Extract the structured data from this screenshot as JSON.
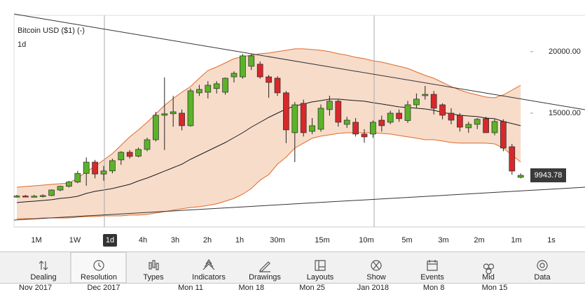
{
  "chart_data": {
    "type": "candlestick",
    "title": "Bitcoin USD ($1) (-)",
    "subtitle": "1d",
    "categories": [
      "Nov 2017",
      null,
      null,
      null,
      null,
      null,
      null,
      null,
      null,
      null,
      "Dec 2017",
      null,
      null,
      null,
      null,
      null,
      null,
      null,
      null,
      null,
      "Mon 11",
      null,
      null,
      null,
      null,
      null,
      null,
      "Mon 18",
      null,
      null,
      null,
      null,
      null,
      null,
      "Mon 25",
      null,
      null,
      null,
      null,
      null,
      null,
      "Jan 2018",
      null,
      null,
      null,
      null,
      null,
      null,
      "Mon 8",
      null,
      null,
      null,
      null,
      null,
      null,
      "Mon 15",
      null,
      null,
      null
    ],
    "open": [
      8200,
      8260,
      8230,
      8250,
      8300,
      8750,
      9050,
      9400,
      10100,
      11020,
      10050,
      10300,
      11200,
      11820,
      11500,
      12050,
      12840,
      14830,
      14950,
      15000,
      13980,
      16650,
      16700,
      17000,
      16700,
      17950,
      17950,
      18810,
      18980,
      17950,
      17840,
      16650,
      13410,
      15800,
      13520,
      13690,
      15290,
      15970,
      14090,
      14260,
      13300,
      13300,
      14430,
      14260,
      15000,
      14400,
      15680,
      16420,
      16530,
      15680,
      15000,
      14830,
      13810,
      14090,
      14550,
      13410,
      14320,
      12270,
      9780
    ],
    "high": [
      8350,
      8350,
      8360,
      8400,
      8800,
      9100,
      9500,
      10300,
      11400,
      11200,
      10700,
      11300,
      11900,
      12000,
      12200,
      13000,
      15100,
      17900,
      16400,
      15300,
      17000,
      17300,
      17600,
      17600,
      17900,
      18400,
      19800,
      19830,
      19200,
      18100,
      18000,
      16800,
      15900,
      16100,
      14600,
      15700,
      16420,
      16100,
      14700,
      14600,
      13700,
      14400,
      14800,
      15200,
      15300,
      16000,
      16600,
      17215,
      16800,
      15800,
      15400,
      15000,
      14300,
      14600,
      14700,
      14500,
      14500,
      12500,
      10100
    ],
    "low": [
      8130,
      8180,
      8150,
      8150,
      8250,
      8650,
      8950,
      9300,
      9100,
      9700,
      9500,
      10100,
      10800,
      11300,
      11400,
      11900,
      12700,
      12000,
      13900,
      13600,
      13900,
      16400,
      16200,
      16600,
      16500,
      17500,
      17800,
      18500,
      17800,
      16250,
      16400,
      12560,
      11020,
      13100,
      13300,
      13500,
      14800,
      13900,
      13800,
      13100,
      12600,
      13000,
      13500,
      14100,
      14300,
      14200,
      15400,
      16100,
      14900,
      14500,
      14100,
      13500,
      13400,
      13700,
      13400,
      13200,
      11900,
      10000,
      9700
    ],
    "close": [
      8260,
      8230,
      8250,
      8300,
      8750,
      9050,
      9400,
      10100,
      11020,
      10050,
      10300,
      11140,
      11820,
      11480,
      12050,
      12840,
      14830,
      14950,
      15110,
      13980,
      16820,
      16930,
      17270,
      17390,
      17840,
      18240,
      19660,
      19660,
      17950,
      17500,
      16650,
      13640,
      15680,
      13410,
      13980,
      15400,
      15970,
      14260,
      14430,
      13300,
      13070,
      14260,
      13980,
      15000,
      14550,
      15680,
      16140,
      16530,
      15400,
      14830,
      14430,
      13860,
      14090,
      14500,
      13410,
      14320,
      12160,
      10290,
      9943.78
    ],
    "up_color": "#5bb329",
    "down_color": "#d7282b",
    "bollinger": {
      "upper": [
        8980,
        9040,
        9090,
        9150,
        9210,
        9260,
        9320,
        9720,
        10230,
        10680,
        11190,
        11710,
        12390,
        13070,
        13640,
        14260,
        14940,
        15630,
        16190,
        16700,
        17160,
        17840,
        18470,
        18750,
        19090,
        19430,
        19600,
        19710,
        19830,
        19890,
        20000,
        20110,
        20230,
        20230,
        20170,
        20110,
        20000,
        19830,
        19710,
        19540,
        19430,
        19260,
        19150,
        18980,
        18810,
        18640,
        18350,
        18070,
        17840,
        17500,
        17160,
        16870,
        16650,
        16480,
        16310,
        16250,
        16480,
        16870,
        17270
      ],
      "middle": [
        7730,
        7790,
        7840,
        7900,
        7960,
        8070,
        8130,
        8240,
        8470,
        8640,
        8750,
        8870,
        9040,
        9210,
        9490,
        9720,
        10000,
        10290,
        10570,
        10850,
        11250,
        11590,
        11930,
        12270,
        12610,
        13010,
        13410,
        13860,
        14260,
        14660,
        15000,
        15340,
        15570,
        15740,
        15910,
        16020,
        16140,
        16140,
        16080,
        16020,
        15970,
        15850,
        15740,
        15630,
        15510,
        15450,
        15400,
        15340,
        15230,
        15060,
        14940,
        14830,
        14770,
        14720,
        14600,
        14550,
        14320,
        14150,
        13980
      ],
      "lower": [
        6420,
        6420,
        6420,
        6480,
        6480,
        6480,
        6480,
        6540,
        6590,
        6590,
        6650,
        6650,
        6650,
        6710,
        6710,
        6760,
        6880,
        6990,
        7110,
        7220,
        7330,
        7390,
        7500,
        7620,
        7840,
        8070,
        8410,
        8870,
        9550,
        10000,
        10850,
        11420,
        12160,
        12560,
        12960,
        13130,
        13240,
        13350,
        13410,
        13410,
        13410,
        13410,
        13350,
        13300,
        13180,
        13070,
        12960,
        12840,
        12840,
        12730,
        12610,
        12560,
        12560,
        12560,
        12560,
        12500,
        12160,
        11590,
        11020
      ],
      "fill": "#f7dcca",
      "band_color": "#e06a28",
      "middle_color": "#1a1a1a"
    },
    "ylim": [
      5740,
      22950
    ],
    "yticks": [
      {
        "value": 15000,
        "label": "15000.00"
      },
      {
        "value": 20000,
        "label": "20000.00"
      }
    ]
  },
  "resolution_bar": {
    "options": [
      "1M",
      "1W",
      "1d",
      "4h",
      "3h",
      "2h",
      "1h",
      "30m",
      "15m",
      "10m",
      "5m",
      "3m",
      "2m",
      "1m",
      "1s"
    ],
    "selected": 2
  },
  "toolbar": {
    "items": [
      "Dealing",
      "Resolution",
      "Types",
      "Indicators",
      "Drawings",
      "Layouts",
      "Show",
      "Events",
      "Mid",
      "Data"
    ]
  }
}
